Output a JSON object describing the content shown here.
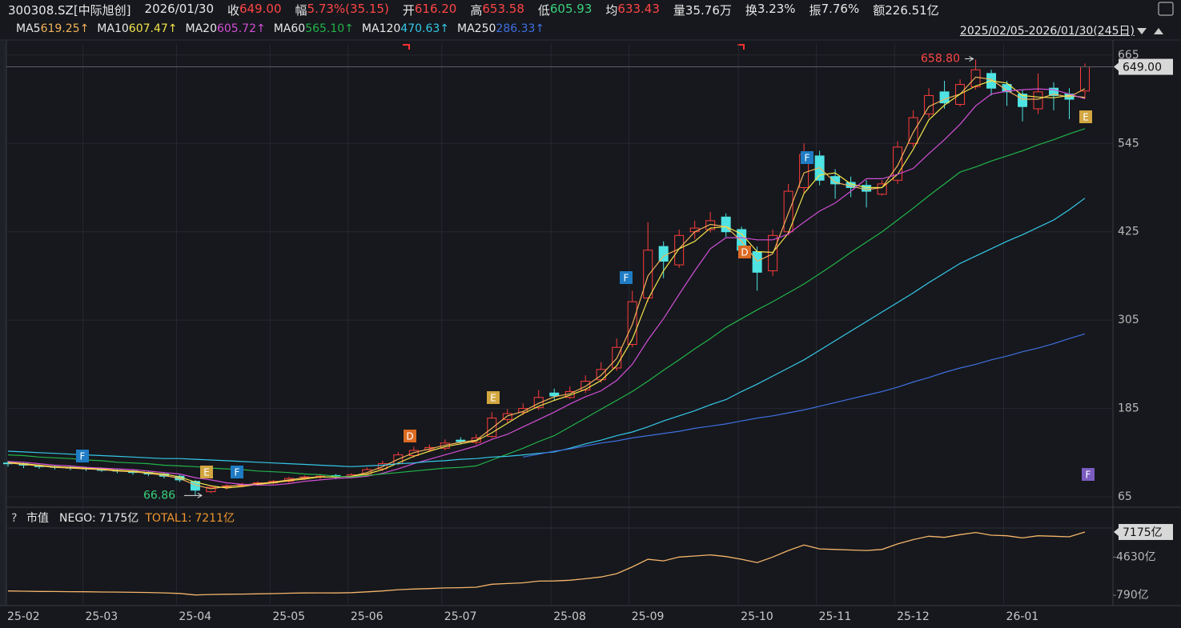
{
  "header": {
    "code": "300308.SZ[中际旭创]",
    "date": "2026/01/30",
    "fields": [
      {
        "label": "收",
        "value": "649.00",
        "color": "#ff4545"
      },
      {
        "label": "幅",
        "value": "5.73%(35.15)",
        "color": "#ff4545"
      },
      {
        "label": "开",
        "value": "616.20",
        "color": "#ff4545"
      },
      {
        "label": "高",
        "value": "653.58",
        "color": "#ff4545"
      },
      {
        "label": "低",
        "value": "605.93",
        "color": "#3ad07a"
      },
      {
        "label": "均",
        "value": "633.43",
        "color": "#ff4545"
      },
      {
        "label": "量",
        "value": "35.76万",
        "color": "#e8e8e8"
      },
      {
        "label": "换",
        "value": "3.23%",
        "color": "#e8e8e8"
      },
      {
        "label": "振",
        "value": "7.76%",
        "color": "#e8e8e8"
      },
      {
        "label": "额",
        "value": "226.51亿",
        "color": "#e8e8e8"
      }
    ],
    "range": "2025/02/05-2026/01/30(245日)"
  },
  "chart_data": [
    {
      "type": "candlestick",
      "categories": [
        "25-02",
        null,
        null,
        null,
        null,
        "25-03",
        null,
        null,
        null,
        null,
        null,
        "25-04",
        null,
        null,
        null,
        null,
        null,
        "25-05",
        null,
        null,
        null,
        null,
        "25-06",
        null,
        null,
        null,
        null,
        null,
        "25-07",
        null,
        null,
        null,
        null,
        null,
        null,
        "25-08",
        null,
        null,
        null,
        null,
        "25-09",
        null,
        null,
        null,
        null,
        null,
        null,
        "25-10",
        null,
        null,
        null,
        null,
        "25-11",
        null,
        null,
        null,
        null,
        "25-12",
        null,
        null,
        null,
        null,
        null,
        null,
        "26-01",
        null,
        null,
        null,
        null,
        null
      ],
      "open": [
        111,
        110,
        107,
        106,
        105,
        104,
        103,
        101,
        100,
        98,
        96,
        93,
        86,
        72,
        78,
        80,
        82,
        84,
        86,
        90,
        92,
        94,
        92,
        95,
        103,
        110,
        121,
        129,
        131,
        142,
        139,
        147,
        170,
        180,
        186,
        206,
        200,
        210,
        224,
        240,
        272,
        335,
        405,
        380,
        425,
        428,
        445,
        428,
        398,
        372,
        425,
        485,
        528,
        500,
        492,
        488,
        476,
        495,
        545,
        585,
        615,
        598,
        622,
        640,
        625,
        612,
        592,
        620,
        612,
        616.2
      ],
      "high": [
        114,
        112,
        109,
        108,
        107,
        106,
        105,
        103,
        102,
        100,
        98,
        95,
        88,
        80,
        82,
        84,
        86,
        88,
        92,
        94,
        96,
        96,
        97,
        105,
        114,
        126,
        133,
        136,
        143,
        146,
        150,
        180,
        184,
        192,
        210,
        212,
        215,
        230,
        248,
        280,
        345,
        438,
        412,
        428,
        440,
        452,
        450,
        432,
        405,
        428,
        490,
        545,
        535,
        510,
        500,
        495,
        495,
        548,
        590,
        620,
        630,
        632,
        658.8,
        645,
        630,
        618,
        640,
        628,
        620,
        653.58
      ],
      "low": [
        106,
        104,
        103,
        102,
        101,
        100,
        99,
        97,
        95,
        93,
        90,
        85,
        66.86,
        70,
        75,
        78,
        80,
        82,
        84,
        88,
        89,
        89,
        90,
        93,
        100,
        108,
        118,
        126,
        128,
        136,
        136,
        145,
        166,
        176,
        183,
        196,
        198,
        206,
        220,
        236,
        268,
        330,
        362,
        376,
        415,
        424,
        418,
        395,
        345,
        365,
        420,
        478,
        488,
        470,
        472,
        458,
        474,
        490,
        540,
        580,
        592,
        595,
        618,
        610,
        596,
        575,
        585,
        590,
        578,
        605.93
      ],
      "close": [
        110,
        108,
        106,
        105,
        104,
        103,
        101,
        100,
        98,
        96,
        93,
        88,
        74,
        78,
        80,
        82,
        84,
        86,
        90,
        92,
        93,
        92,
        95,
        102,
        110,
        122,
        128,
        132,
        138,
        140,
        145,
        172,
        178,
        185,
        200,
        202,
        208,
        222,
        238,
        268,
        330,
        400,
        385,
        420,
        430,
        440,
        425,
        400,
        370,
        420,
        480,
        530,
        495,
        490,
        485,
        480,
        490,
        540,
        580,
        610,
        600,
        625,
        645,
        620,
        615,
        595,
        615,
        610,
        605,
        649
      ],
      "up_color": "#ff3c3c",
      "down_color": "#4fe3e3",
      "series": [
        {
          "name": "MA5",
          "color": "#f3b25a",
          "legend_value": "619.25↑",
          "values": [
            111,
            109,
            107,
            105,
            104,
            103,
            102,
            100,
            99,
            97,
            94,
            90,
            81,
            76,
            79,
            81,
            83,
            85,
            88,
            91,
            92,
            92,
            93,
            98,
            106,
            116,
            125,
            130,
            135,
            139,
            142,
            158,
            175,
            181,
            192,
            201,
            205,
            215,
            230,
            253,
            299,
            365,
            392,
            402,
            425,
            435,
            432,
            412,
            385,
            395,
            450,
            505,
            512,
            492,
            487,
            482,
            485,
            515,
            560,
            595,
            605,
            612,
            635,
            632,
            617,
            605,
            605,
            612,
            608,
            619.25
          ]
        },
        {
          "name": "MA10",
          "color": "#f2e34a",
          "legend_value": "607.47↑",
          "values": [
            112,
            110,
            108,
            106,
            105,
            104,
            103,
            101,
            100,
            98,
            96,
            92,
            85,
            80,
            77,
            79,
            82,
            84,
            87,
            89,
            92,
            92,
            93,
            96,
            102,
            111,
            120,
            127,
            133,
            137,
            141,
            152,
            165,
            178,
            188,
            196,
            203,
            211,
            223,
            243,
            279,
            333,
            372,
            402,
            412,
            430,
            432,
            422,
            398,
            397,
            423,
            477,
            502,
            505,
            490,
            485,
            485,
            503,
            537,
            577,
            597,
            612,
            623,
            630,
            627,
            610,
            608,
            607,
            610,
            607.47
          ]
        },
        {
          "name": "MA20",
          "color": "#d34fd6",
          "legend_value": "605.72↑",
          "values": [
            113,
            112,
            110,
            108,
            107,
            105,
            104,
            103,
            102,
            100,
            98,
            96,
            91,
            88,
            84,
            82,
            81,
            81,
            83,
            86,
            88,
            90,
            91,
            93,
            97,
            103,
            110,
            116,
            122,
            128,
            134,
            143,
            150,
            160,
            170,
            180,
            191,
            201,
            209,
            223,
            245,
            278,
            307,
            340,
            372,
            402,
            417,
            417,
            414,
            414,
            422,
            438,
            453,
            464,
            480,
            497,
            497,
            503,
            511,
            531,
            550,
            571,
            596,
            612,
            616,
            618,
            619,
            618,
            612,
            605.72
          ]
        },
        {
          "name": "MA60",
          "color": "#22b34a",
          "legend_value": "565.10↑",
          "values": [
            122,
            121,
            119,
            118,
            117,
            115,
            114,
            112,
            111,
            110,
            108,
            107,
            106,
            104,
            103,
            102,
            100,
            99,
            98,
            96,
            95,
            93,
            92,
            94,
            96,
            98,
            100,
            102,
            104,
            105,
            107,
            115,
            123,
            131,
            140,
            148,
            160,
            172,
            184,
            196,
            208,
            222,
            237,
            251,
            266,
            280,
            295,
            307,
            319,
            330,
            342,
            354,
            368,
            382,
            397,
            411,
            425,
            441,
            457,
            474,
            490,
            506,
            513,
            521,
            528,
            535,
            543,
            550,
            558,
            565.1
          ]
        },
        {
          "name": "MA120",
          "color": "#35c8e8",
          "legend_value": "470.63↑",
          "values": [
            127,
            126,
            125,
            124,
            123,
            122,
            121,
            120,
            119,
            118,
            117,
            117,
            116,
            115,
            114,
            113,
            112,
            111,
            110,
            109,
            108,
            107,
            106,
            107,
            108,
            110,
            111,
            113,
            114,
            116,
            117,
            119,
            120,
            122,
            124,
            126,
            131,
            137,
            142,
            148,
            153,
            160,
            168,
            175,
            182,
            190,
            197,
            208,
            218,
            229,
            240,
            251,
            264,
            277,
            290,
            303,
            316,
            329,
            342,
            356,
            369,
            382,
            392,
            402,
            412,
            421,
            431,
            441,
            455,
            470.63
          ]
        },
        {
          "name": "MA250",
          "color": "#3f6fe0",
          "legend_value": "286.33↑",
          "values": [
            null,
            null,
            null,
            null,
            null,
            null,
            null,
            null,
            null,
            null,
            null,
            null,
            null,
            null,
            null,
            null,
            null,
            null,
            null,
            null,
            null,
            null,
            null,
            null,
            null,
            null,
            null,
            null,
            null,
            null,
            null,
            null,
            null,
            119,
            123,
            127,
            130,
            134,
            138,
            141,
            145,
            148,
            151,
            154,
            158,
            161,
            164,
            168,
            172,
            175,
            179,
            183,
            188,
            193,
            198,
            203,
            208,
            214,
            221,
            227,
            234,
            240,
            245,
            251,
            256,
            262,
            267,
            273,
            280,
            286.33
          ]
        }
      ],
      "ylim": [
        52,
        680
      ],
      "yticks": [
        65,
        185,
        305,
        425,
        545,
        665
      ],
      "last_price": {
        "value": 649,
        "label": "649.00"
      },
      "high_mark": {
        "value": 658.8,
        "label": "658.80"
      },
      "low_mark": {
        "value": 66.86,
        "label": "66.86"
      },
      "events": [
        {
          "label": "F",
          "color": "#1f7cc4"
        },
        {
          "label": "E",
          "color": "#d2a640"
        },
        {
          "label": "F",
          "color": "#1f7cc4"
        },
        {
          "label": "D",
          "color": "#dc6a22"
        },
        {
          "label": "E",
          "color": "#d2a640"
        },
        {
          "label": "F",
          "color": "#1f7cc4"
        },
        {
          "label": "D",
          "color": "#dc6a22"
        },
        {
          "label": "F",
          "color": "#1f7cc4"
        },
        {
          "label": "E",
          "color": "#d2a640"
        },
        {
          "label": "F",
          "color": "#7b5cc0"
        }
      ]
    },
    {
      "type": "line",
      "help": "?",
      "title": "市值",
      "legend": [
        {
          "name": "NEGO:",
          "label": "7175亿",
          "color": "#e8e8e8"
        },
        {
          "name": "TOTAL1:",
          "label": "7211亿",
          "color": "#f0962e"
        }
      ],
      "series": [
        {
          "name": "NEGO",
          "color": "#f5b56a",
          "values": [
            1216,
            1193,
            1171,
            1160,
            1149,
            1138,
            1116,
            1105,
            1083,
            1061,
            1028,
            972,
            818,
            862,
            884,
            906,
            928,
            950,
            995,
            1017,
            1028,
            1017,
            1050,
            1127,
            1216,
            1348,
            1414,
            1459,
            1525,
            1547,
            1602,
            1901,
            1967,
            2044,
            2210,
            2232,
            2298,
            2453,
            2630,
            2961,
            3647,
            4420,
            4254,
            4641,
            4752,
            4862,
            4696,
            4420,
            4089,
            4641,
            5304,
            5857,
            5470,
            5415,
            5359,
            5304,
            5415,
            5967,
            6409,
            6741,
            6630,
            6906,
            7127,
            6851,
            6796,
            6575,
            6796,
            6741,
            6685,
            7175
          ]
        }
      ],
      "ylim": [
        -260,
        7577
      ],
      "yticks": [
        {
          "value": 790,
          "label": "790亿"
        },
        {
          "value": 4630,
          "label": "4630亿"
        }
      ],
      "last_value": {
        "value": 7175,
        "label": "7175亿"
      }
    }
  ]
}
